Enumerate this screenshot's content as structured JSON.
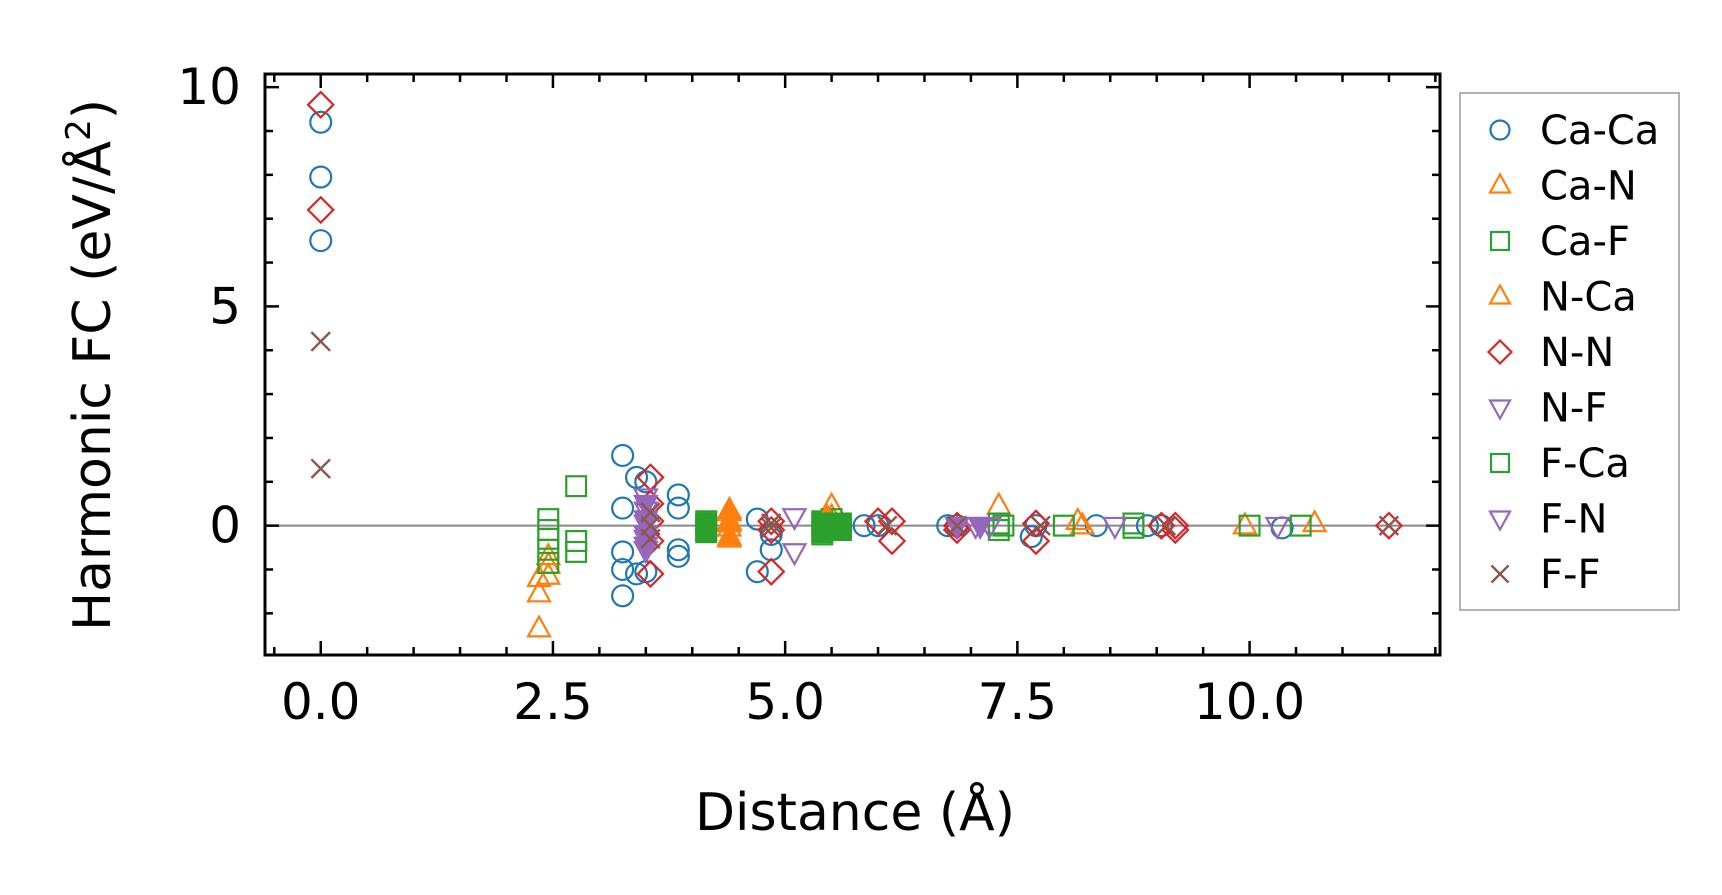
{
  "chart_data": {
    "type": "scatter",
    "xlabel": "Distance (Å)",
    "ylabel_main": "Harmonic FC (eV/Å",
    "ylabel_sup": "2",
    "ylabel_end": ")",
    "xlim": [
      -0.6,
      12.05
    ],
    "ylim": [
      -2.95,
      10.3
    ],
    "xticks": [
      0.0,
      2.5,
      5.0,
      7.5,
      10.0
    ],
    "xtick_labels": [
      "0.0",
      "2.5",
      "5.0",
      "7.5",
      "10.0"
    ],
    "yticks": [
      0,
      5,
      10
    ],
    "ytick_labels": [
      "0",
      "5",
      "10"
    ],
    "x_minor_step": 0.5,
    "y_minor_step": 1,
    "zero_line": true,
    "legend_position": "outside-right-top",
    "series": [
      {
        "name": "Ca-Ca",
        "marker": "circle",
        "color": "#1f77b4",
        "filled": false,
        "points": [
          [
            0,
            9.2
          ],
          [
            0,
            7.95
          ],
          [
            0,
            6.5
          ],
          [
            3.25,
            1.6
          ],
          [
            3.25,
            0.4
          ],
          [
            3.25,
            -0.6
          ],
          [
            3.25,
            -1.0
          ],
          [
            3.25,
            -1.6
          ],
          [
            3.4,
            1.1
          ],
          [
            3.4,
            -1.1
          ],
          [
            3.5,
            1.0
          ],
          [
            3.5,
            -1.05
          ],
          [
            3.85,
            0.7
          ],
          [
            3.85,
            0.4
          ],
          [
            3.85,
            -0.55
          ],
          [
            3.85,
            -0.7
          ],
          [
            4.7,
            0.15
          ],
          [
            4.7,
            -1.05
          ],
          [
            4.85,
            -0.55
          ],
          [
            4.85,
            -0.2
          ],
          [
            5.85,
            0
          ],
          [
            6.0,
            0
          ],
          [
            6.75,
            0
          ],
          [
            6.85,
            0
          ],
          [
            7.65,
            -0.25
          ],
          [
            7.7,
            0
          ],
          [
            8.35,
            0
          ],
          [
            8.9,
            0
          ],
          [
            9.05,
            0
          ],
          [
            10.35,
            -0.05
          ]
        ]
      },
      {
        "name": "Ca-N",
        "marker": "triangle-up",
        "color": "#ff7f0e",
        "filled": false,
        "points": [
          [
            2.35,
            -2.35
          ],
          [
            2.35,
            -1.55
          ],
          [
            2.35,
            -1.2
          ],
          [
            2.45,
            -1.15
          ],
          [
            2.45,
            -0.9
          ],
          [
            2.45,
            -0.7
          ],
          [
            4.4,
            0.3
          ],
          [
            4.4,
            0.1
          ],
          [
            4.4,
            -0.05
          ],
          [
            4.4,
            -0.3
          ],
          [
            5.5,
            0.45
          ],
          [
            5.5,
            0.2
          ],
          [
            5.5,
            -0.15
          ],
          [
            7.3,
            0.45
          ],
          [
            8.15,
            0.1
          ],
          [
            8.2,
            0
          ],
          [
            9.95,
            0
          ],
          [
            10.7,
            0.05
          ]
        ]
      },
      {
        "name": "Ca-F",
        "marker": "square",
        "color": "#2ca02c",
        "filled": false,
        "points": [
          [
            2.45,
            0.15
          ],
          [
            2.45,
            -0.1
          ],
          [
            2.45,
            -0.3
          ],
          [
            2.45,
            -0.55
          ],
          [
            2.45,
            -0.85
          ],
          [
            2.75,
            0.9
          ],
          [
            2.75,
            -0.35
          ],
          [
            2.75,
            -0.6
          ],
          [
            4.15,
            0.1
          ],
          [
            4.15,
            -0.1
          ],
          [
            5.4,
            0.1
          ],
          [
            5.4,
            -0.2
          ],
          [
            5.5,
            0.15
          ],
          [
            5.6,
            -0.05
          ],
          [
            7.3,
            0.05
          ],
          [
            7.3,
            -0.1
          ],
          [
            7.35,
            0
          ],
          [
            8.0,
            0
          ],
          [
            8.75,
            0.05
          ],
          [
            8.75,
            -0.05
          ],
          [
            10.0,
            0
          ],
          [
            10.55,
            0
          ]
        ]
      },
      {
        "name": "N-Ca",
        "marker": "triangle-up",
        "color": "#ff7f0e",
        "filled": true,
        "points": [
          [
            4.4,
            0.35
          ],
          [
            4.4,
            0.05
          ],
          [
            4.4,
            -0.25
          ],
          [
            5.45,
            0.2
          ],
          [
            5.45,
            -0.1
          ]
        ]
      },
      {
        "name": "N-N",
        "marker": "diamond",
        "color": "#d62728",
        "filled": false,
        "points": [
          [
            0,
            9.6
          ],
          [
            0,
            7.2
          ],
          [
            3.55,
            1.1
          ],
          [
            3.55,
            0.5
          ],
          [
            3.55,
            0.1
          ],
          [
            3.55,
            -0.35
          ],
          [
            3.55,
            -1.1
          ],
          [
            4.85,
            0.1
          ],
          [
            4.85,
            -0.1
          ],
          [
            4.85,
            -1.05
          ],
          [
            6.0,
            0.1
          ],
          [
            6.15,
            0.1
          ],
          [
            6.15,
            -0.35
          ],
          [
            6.85,
            0
          ],
          [
            6.85,
            -0.1
          ],
          [
            7.7,
            0.05
          ],
          [
            7.7,
            -0.35
          ],
          [
            9.05,
            0
          ],
          [
            9.2,
            0
          ],
          [
            9.2,
            -0.1
          ],
          [
            11.5,
            0
          ]
        ]
      },
      {
        "name": "N-F",
        "marker": "triangle-down",
        "color": "#9467bd",
        "filled": false,
        "points": [
          [
            3.5,
            0.65
          ],
          [
            3.5,
            0.35
          ],
          [
            3.5,
            0.05
          ],
          [
            3.5,
            -0.3
          ],
          [
            3.5,
            -0.55
          ],
          [
            5.1,
            0.2
          ],
          [
            5.1,
            -0.6
          ],
          [
            7.05,
            0
          ],
          [
            7.2,
            0
          ],
          [
            8.55,
            0
          ],
          [
            10.3,
            0
          ]
        ]
      },
      {
        "name": "F-Ca",
        "marker": "square",
        "color": "#2ca02c",
        "filled": true,
        "points": [
          [
            4.15,
            0.05
          ],
          [
            4.15,
            -0.15
          ],
          [
            5.4,
            0.05
          ],
          [
            5.4,
            -0.15
          ],
          [
            5.5,
            0.0
          ],
          [
            5.6,
            0.05
          ],
          [
            5.6,
            -0.1
          ]
        ]
      },
      {
        "name": "F-N",
        "marker": "triangle-down",
        "color": "#9467bd",
        "filled": true,
        "points": [
          [
            3.5,
            0.5
          ],
          [
            3.5,
            0.15
          ],
          [
            3.5,
            -0.2
          ],
          [
            3.5,
            -0.45
          ],
          [
            6.85,
            0
          ],
          [
            7.1,
            0
          ]
        ]
      },
      {
        "name": "F-F",
        "marker": "x",
        "color": "#8c564b",
        "filled": false,
        "points": [
          [
            0,
            4.2
          ],
          [
            0,
            1.3
          ],
          [
            3.55,
            0.3
          ],
          [
            3.55,
            0.0
          ],
          [
            3.55,
            -0.3
          ],
          [
            4.85,
            0.05
          ],
          [
            4.85,
            -0.05
          ],
          [
            6.1,
            0
          ],
          [
            6.85,
            0
          ],
          [
            7.75,
            0
          ],
          [
            9.1,
            0
          ],
          [
            11.5,
            0
          ]
        ]
      }
    ]
  }
}
